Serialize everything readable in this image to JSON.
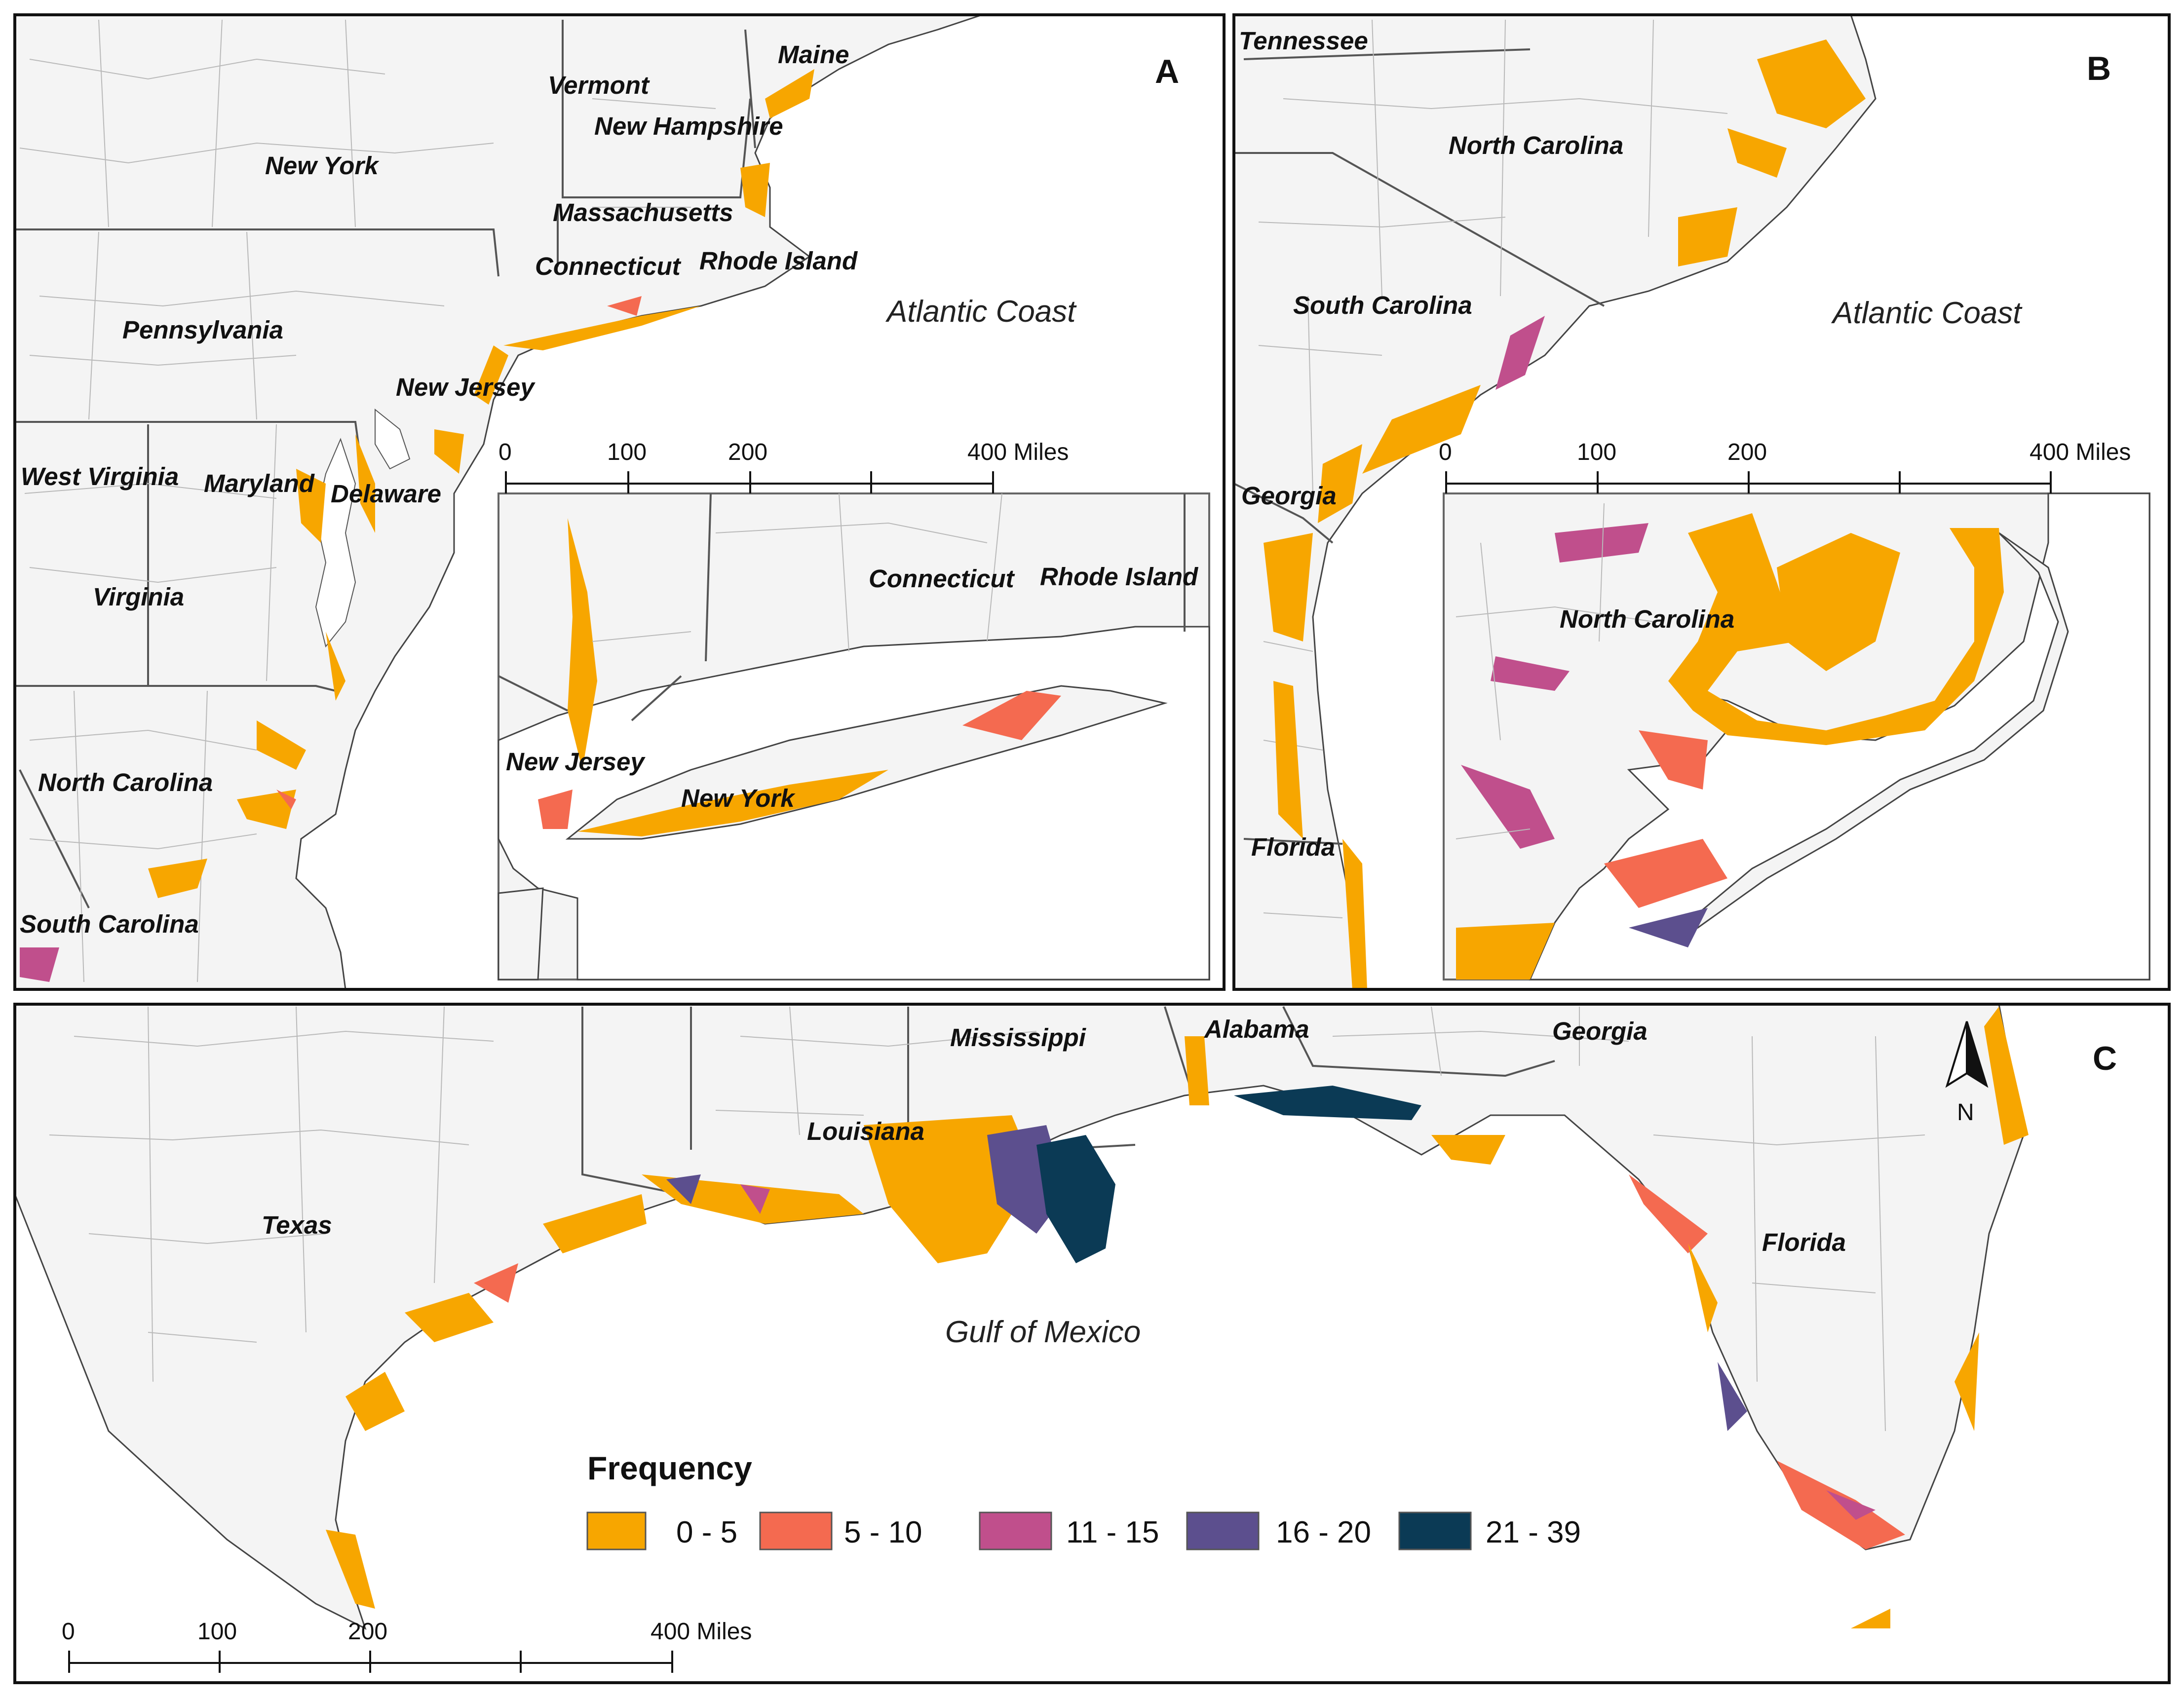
{
  "panels": [
    {
      "id": "A",
      "label": "A"
    },
    {
      "id": "B",
      "label": "B"
    },
    {
      "id": "C",
      "label": "C"
    }
  ],
  "panel_a": {
    "states": [
      "Maine",
      "Vermont",
      "New Hampshire",
      "New York",
      "Massachusetts",
      "Connecticut",
      "Rhode Island",
      "Pennsylvania",
      "New Jersey",
      "West Virginia",
      "Maryland",
      "Delaware",
      "Virginia",
      "North Carolina",
      "South Carolina"
    ],
    "water": "Atlantic Coast",
    "inset_states": [
      "Connecticut",
      "Rhode Island",
      "New Jersey",
      "New York"
    ]
  },
  "panel_b": {
    "states": [
      "Tennessee",
      "North Carolina",
      "South Carolina",
      "Georgia",
      "Florida"
    ],
    "water": "Atlantic Coast",
    "inset_states": [
      "North Carolina"
    ]
  },
  "panel_c": {
    "states": [
      "Mississippi",
      "Alabama",
      "Georgia",
      "Louisiana",
      "Texas",
      "Florida"
    ],
    "water": "Gulf of Mexico",
    "north_label": "N"
  },
  "scale_bar": {
    "ticks": [
      "0",
      "100",
      "200",
      "400 Miles"
    ]
  },
  "legend": {
    "title": "Frequency",
    "classes": [
      {
        "label": "0 - 5",
        "color": "#f7a600"
      },
      {
        "label": "5 - 10",
        "color": "#f46a50"
      },
      {
        "label": "11 - 15",
        "color": "#c04f8c"
      },
      {
        "label": "16 - 20",
        "color": "#5c4f8e"
      },
      {
        "label": "21 - 39",
        "color": "#0b3a55"
      }
    ]
  }
}
